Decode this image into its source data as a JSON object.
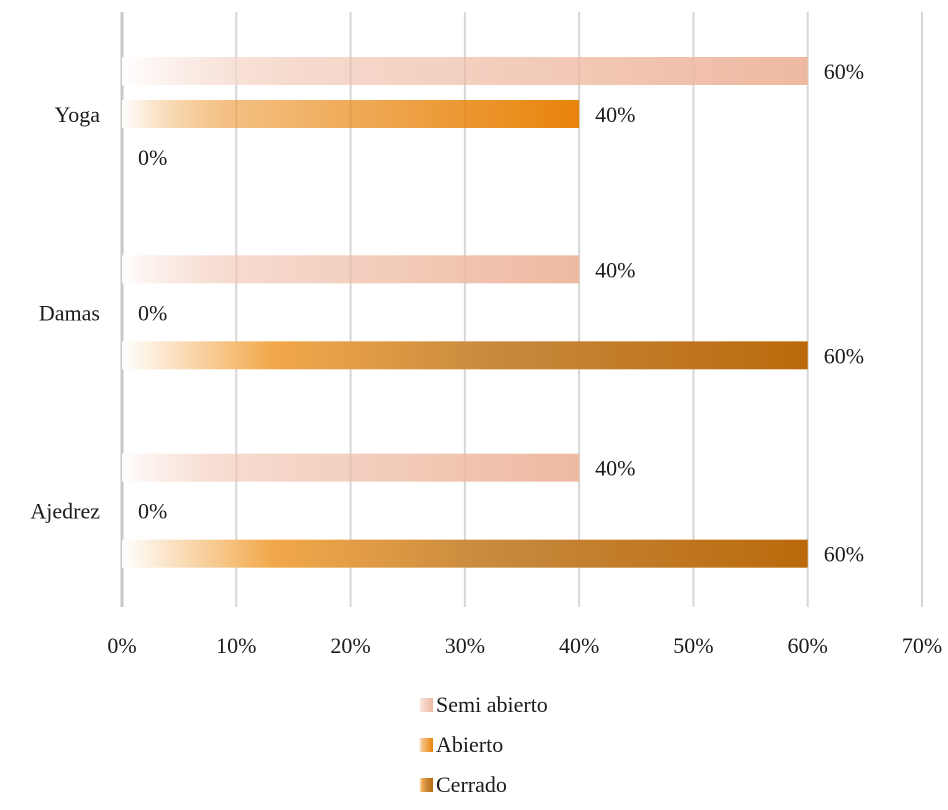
{
  "chart_data": {
    "type": "bar",
    "orientation": "horizontal",
    "categories": [
      "Yoga",
      "Damas",
      "Ajedrez"
    ],
    "series": [
      {
        "name": "Semi abierto",
        "values": [
          60,
          40,
          40
        ],
        "labels": [
          "60%",
          "40%",
          "40%"
        ],
        "color": "#EEB9A1"
      },
      {
        "name": "Abierto",
        "values": [
          40,
          0,
          0
        ],
        "labels": [
          "40%",
          "0%",
          "0%"
        ],
        "color": "#E8830A"
      },
      {
        "name": "Cerrado",
        "values": [
          0,
          60,
          60
        ],
        "labels": [
          "0%",
          "60%",
          "60%"
        ],
        "color": "#BA690A"
      }
    ],
    "xlim": [
      0,
      70
    ],
    "xticks": [
      0,
      10,
      20,
      30,
      40,
      50,
      60,
      70
    ],
    "xtick_labels": [
      "0%",
      "10%",
      "20%",
      "30%",
      "40%",
      "50%",
      "60%",
      "70%"
    ],
    "grid": true,
    "legend_position": "bottom",
    "title": "",
    "xlabel": "",
    "ylabel": ""
  }
}
